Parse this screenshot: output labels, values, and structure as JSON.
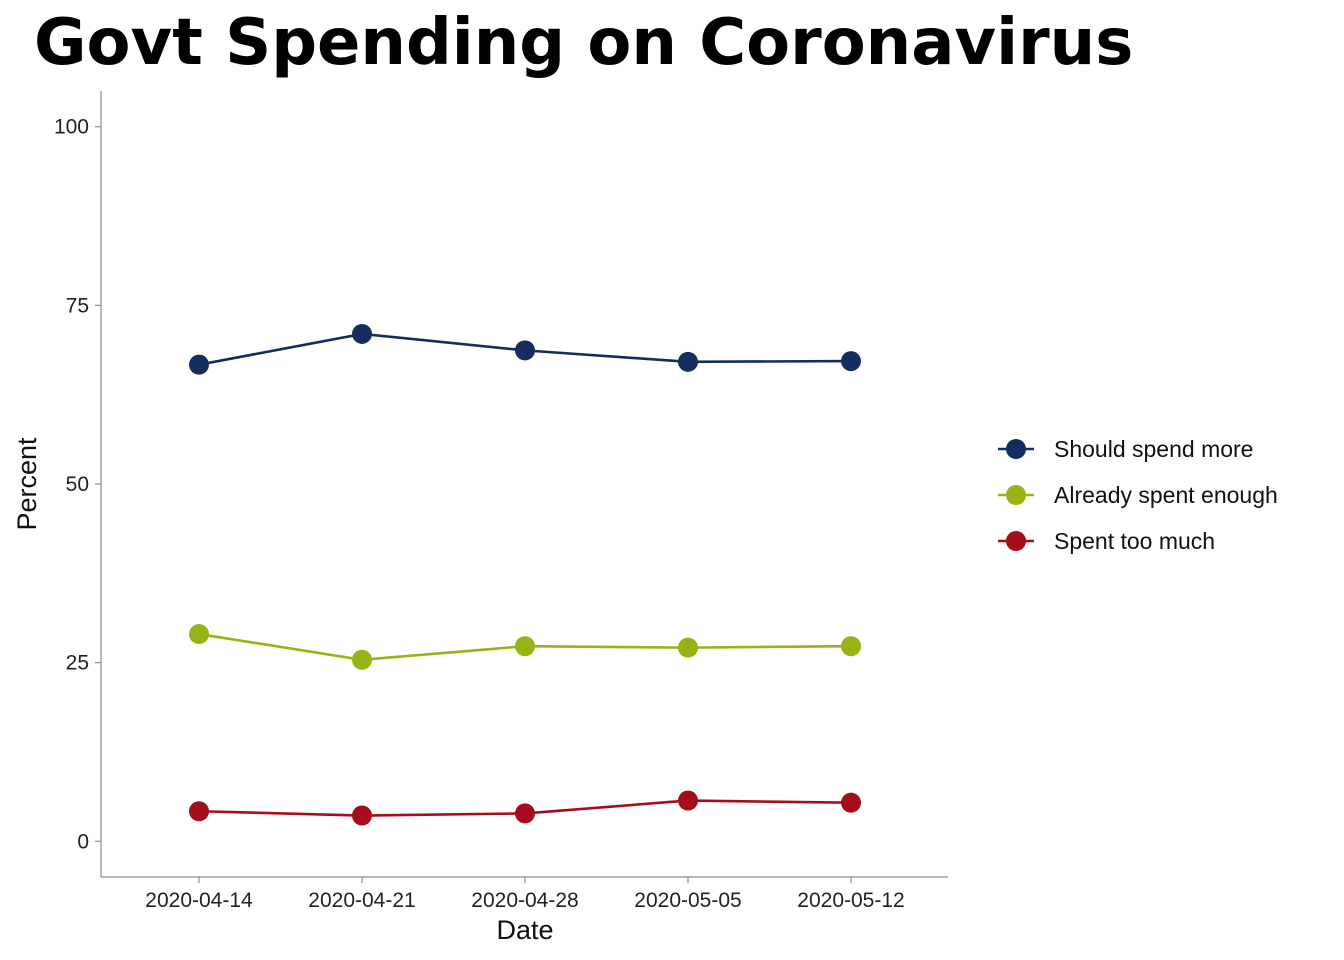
{
  "chart_data": {
    "type": "line",
    "title": "Govt Spending on Coronavirus",
    "xlabel": "Date",
    "ylabel": "Percent",
    "ylim": [
      -5,
      105
    ],
    "yticks": [
      0,
      25,
      50,
      75,
      100
    ],
    "ytick_labels": [
      "0",
      "25",
      "50",
      "75",
      "100"
    ],
    "categories": [
      "2020-04-14",
      "2020-04-21",
      "2020-04-28",
      "2020-05-05",
      "2020-05-12"
    ],
    "grid": false,
    "legend_position": "right",
    "series": [
      {
        "name": "Should spend more",
        "color": "#142d5e",
        "values": [
          66.7,
          71.0,
          68.7,
          67.1,
          67.2
        ]
      },
      {
        "name": "Already spent enough",
        "color": "#97b416",
        "values": [
          29.0,
          25.4,
          27.3,
          27.1,
          27.3
        ]
      },
      {
        "name": "Spent too much",
        "color": "#a50d1d",
        "values": [
          4.2,
          3.6,
          3.9,
          5.7,
          5.4
        ]
      }
    ]
  }
}
